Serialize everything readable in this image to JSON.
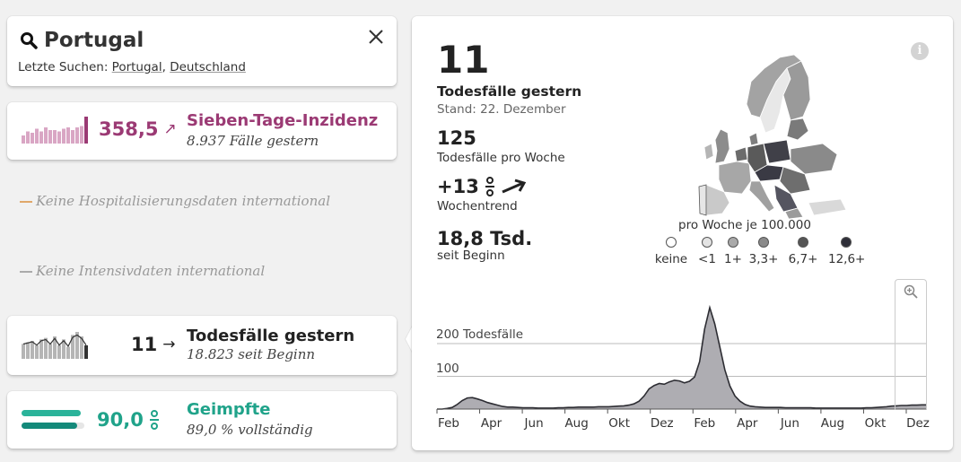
{
  "search": {
    "query": "Portugal",
    "recent_prefix": "Letzte Suchen:",
    "recent": [
      "Portugal",
      "Deutschland"
    ],
    "recent_sep": ", "
  },
  "incidence": {
    "value": "358,5",
    "arrow": "↗",
    "title": "Sieben-Tage-Inzidenz",
    "sub": "8.937 Fälle gestern",
    "color": "#9b3a74"
  },
  "hospital": {
    "text": "Keine Hospitalisierungsdaten international",
    "color": "#e0a86a"
  },
  "icu": {
    "text": "Keine Intensivdaten international"
  },
  "deaths": {
    "value": "11",
    "arrow": "→",
    "title": "Todesfälle gestern",
    "sub": "18.823 seit Beginn"
  },
  "vaccinated": {
    "value": "90,0",
    "unit_icon": "percent-icon",
    "title": "Geimpfte",
    "sub": "89,0 % vollständig",
    "color": "#20a38a"
  },
  "detail": {
    "big_value": "11",
    "big_label": "Todesfälle gestern",
    "stand": "Stand: 22. Dezember",
    "week_value": "125",
    "week_label": "Todesfälle pro Woche",
    "trend_value": "+13",
    "trend_label": "Wochentrend",
    "total_value": "18,8 Tsd.",
    "total_label": "seit Beginn",
    "info_label": "i"
  },
  "map_legend": {
    "title": "pro Woche je 100.000",
    "items": [
      {
        "label": "keine",
        "color": "#ffffff"
      },
      {
        "label": "<1",
        "color": "#e3e3e3"
      },
      {
        "label": "1+",
        "color": "#a9a9a9"
      },
      {
        "label": "3,3+",
        "color": "#8a8a8a"
      },
      {
        "label": "6,7+",
        "color": "#555555"
      },
      {
        "label": "12,6+",
        "color": "#2e2e38"
      }
    ]
  },
  "chart_data": {
    "type": "area",
    "title": "",
    "ylabel": "Todesfälle",
    "y_tick_labels": [
      "200 Todesfälle",
      "100"
    ],
    "y_ticks": [
      200,
      100
    ],
    "ylim": [
      0,
      280
    ],
    "x_tick_labels": [
      "Feb",
      "Apr",
      "Jun",
      "Aug",
      "Okt",
      "Dez",
      "Feb",
      "Apr",
      "Jun",
      "Aug",
      "Okt",
      "Dez"
    ],
    "grid": true,
    "series": [
      {
        "values": [
          0,
          0,
          2,
          5,
          14,
          26,
          34,
          35,
          31,
          26,
          20,
          16,
          12,
          8,
          6,
          6,
          5,
          4,
          4,
          4,
          3,
          3,
          3,
          3,
          4,
          4,
          5,
          5,
          6,
          6,
          6,
          6,
          7,
          7,
          7,
          8,
          9,
          10,
          12,
          16,
          24,
          40,
          62,
          72,
          78,
          76,
          83,
          88,
          86,
          80,
          85,
          98,
          145,
          245,
          310,
          260,
          190,
          120,
          70,
          40,
          24,
          14,
          9,
          7,
          6,
          5,
          5,
          5,
          5,
          4,
          4,
          4,
          4,
          4,
          4,
          3,
          3,
          3,
          3,
          3,
          3,
          3,
          3,
          3,
          3,
          4,
          4,
          5,
          6,
          7,
          9,
          10,
          11,
          11,
          12,
          12,
          13,
          13
        ]
      }
    ]
  },
  "spark_incidence": [
    6,
    9,
    8,
    11,
    9,
    12,
    10,
    10,
    9,
    11,
    12,
    10,
    12,
    13,
    20
  ],
  "spark_deaths": [
    10,
    11,
    12,
    9,
    13,
    14,
    10,
    15,
    9,
    13,
    8,
    16,
    18,
    15,
    9
  ],
  "icons": {
    "search": "search-icon",
    "close": "close-icon",
    "zoom": "zoom-in-icon",
    "info": "info-icon"
  }
}
